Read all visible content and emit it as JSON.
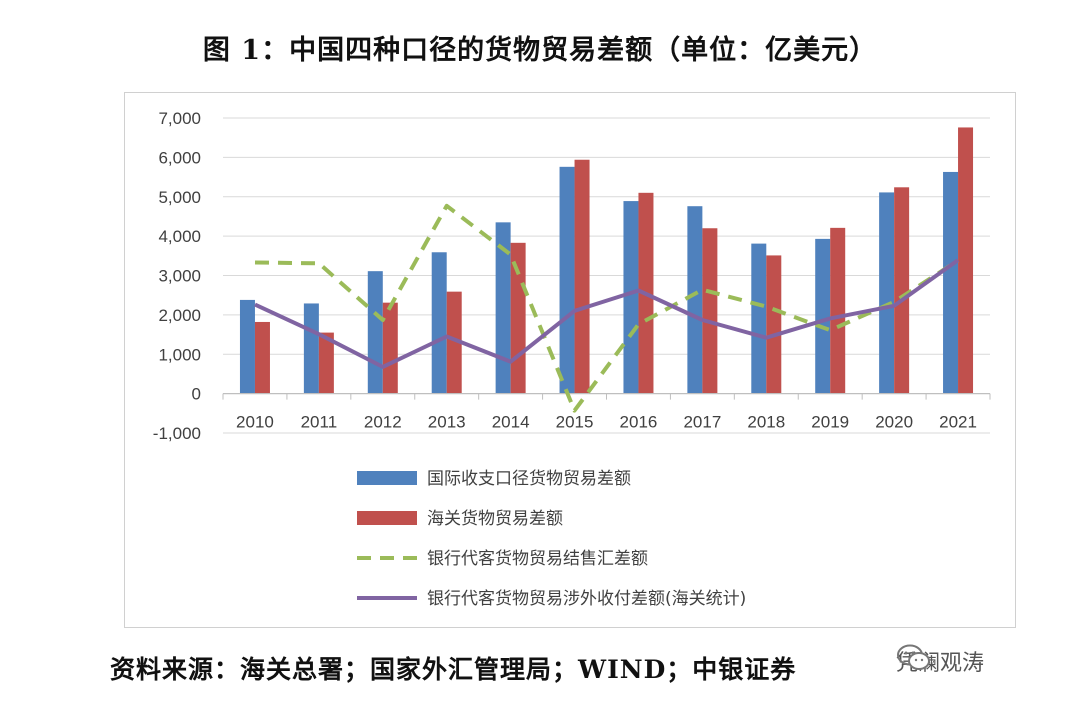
{
  "title": "图 1：中国四种口径的货物贸易差额（单位：亿美元）",
  "source": "资料来源：海关总署；国家外汇管理局；WIND；中银证券",
  "watermark": {
    "text": "凭澜观涛",
    "icon": "wechat-icon"
  },
  "colors": {
    "bar_intl": "#4f81bd",
    "bar_customs": "#c0504d",
    "line_bank_settlement": "#9bbb59",
    "line_bank_receipts": "#8064a2",
    "grid": "#d9d9d9"
  },
  "chart_data": {
    "type": "bar",
    "categories": [
      "2010",
      "2011",
      "2012",
      "2013",
      "2014",
      "2015",
      "2016",
      "2017",
      "2018",
      "2019",
      "2020",
      "2021"
    ],
    "ylim": [
      -1000,
      7000
    ],
    "yticks": [
      -1000,
      0,
      1000,
      2000,
      3000,
      4000,
      5000,
      6000,
      7000
    ],
    "ytick_labels": [
      "-1,000",
      "0",
      "1,000",
      "2,000",
      "3,000",
      "4,000",
      "5,000",
      "6,000",
      "7,000"
    ],
    "grid": true,
    "legend_position": "bottom",
    "series": [
      {
        "name": "国际收支口径货物贸易差额",
        "kind": "bar",
        "values": [
          2380,
          2290,
          3110,
          3590,
          4350,
          5760,
          4890,
          4760,
          3810,
          3930,
          5110,
          5630
        ]
      },
      {
        "name": "海关货物贸易差额",
        "kind": "bar",
        "values": [
          1820,
          1550,
          2310,
          2590,
          3830,
          5940,
          5100,
          4200,
          3510,
          4210,
          5240,
          6760
        ]
      },
      {
        "name": "银行代客货物贸易结售汇差额",
        "kind": "line-dashed",
        "values": [
          3330,
          3310,
          1870,
          4770,
          3530,
          -430,
          1760,
          2640,
          2210,
          1610,
          2330,
          3380
        ]
      },
      {
        "name": "银行代客货物贸易涉外收付差额(海关统计)",
        "kind": "line",
        "values": [
          2260,
          1510,
          680,
          1450,
          810,
          2100,
          2620,
          1870,
          1420,
          1910,
          2230,
          3390
        ]
      }
    ]
  }
}
